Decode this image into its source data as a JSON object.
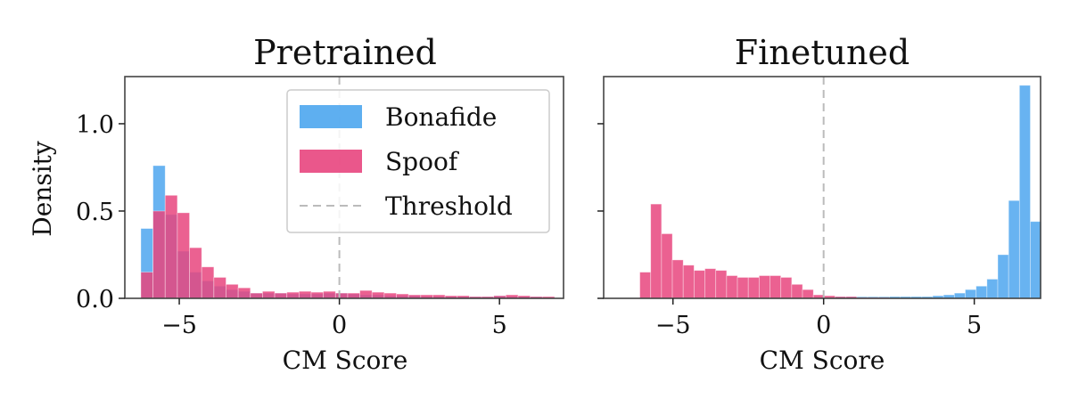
{
  "colors": {
    "bonafide": "#4DA6EE",
    "spoof": "#E8457E",
    "threshold": "#bbbbbb",
    "frame": "#444444"
  },
  "legend": {
    "bonafide": "Bonafide",
    "spoof": "Spoof",
    "threshold": "Threshold"
  },
  "chart_data": [
    {
      "type": "bar",
      "title": "Pretrained",
      "xlabel": "CM Score",
      "ylabel": "Density",
      "xlim": [
        -6.7,
        7.0
      ],
      "ylim": [
        0,
        1.27
      ],
      "xticks": [
        -5,
        0,
        5
      ],
      "xtick_labels": [
        "−5",
        "0",
        "5"
      ],
      "yticks": [
        0.0,
        0.5,
        1.0
      ],
      "ytick_labels": [
        "0.0",
        "0.5",
        "1.0"
      ],
      "threshold": 0.0,
      "legend_position": "upper-right",
      "bin_start": -6.2,
      "bin_width": 0.38,
      "series": [
        {
          "name": "Bonafide",
          "values": [
            0.4,
            0.76,
            0.48,
            0.27,
            0.15,
            0.1,
            0.07,
            0.05,
            0.04,
            0.03,
            0.03,
            0.03,
            0.025,
            0.025,
            0.025,
            0.03,
            0.03,
            0.025,
            0.02,
            0.02,
            0.015,
            0.015,
            0.015,
            0.01,
            0.01,
            0.01,
            0.01,
            0.01,
            0.01,
            0.015,
            0.01,
            0.01,
            0.01,
            0.005
          ]
        },
        {
          "name": "Spoof",
          "values": [
            0.15,
            0.5,
            0.59,
            0.49,
            0.29,
            0.18,
            0.12,
            0.08,
            0.06,
            0.03,
            0.04,
            0.03,
            0.035,
            0.04,
            0.035,
            0.04,
            0.03,
            0.03,
            0.045,
            0.035,
            0.03,
            0.025,
            0.02,
            0.02,
            0.02,
            0.015,
            0.015,
            0.01,
            0.01,
            0.015,
            0.02,
            0.015,
            0.01,
            0.01
          ]
        }
      ]
    },
    {
      "type": "bar",
      "title": "Finetuned",
      "xlabel": "CM Score",
      "ylabel": "",
      "xlim": [
        -7.3,
        7.2
      ],
      "ylim": [
        0,
        1.27
      ],
      "xticks": [
        -5,
        0,
        5
      ],
      "xtick_labels": [
        "−5",
        "0",
        "5"
      ],
      "yticks": [
        0.0,
        0.5,
        1.0
      ],
      "ytick_labels": [
        "",
        "",
        ""
      ],
      "threshold": 0.0,
      "bin_start": -6.1,
      "bin_width": 0.36,
      "series": [
        {
          "name": "Bonafide",
          "values": [
            0,
            0,
            0,
            0,
            0,
            0,
            0,
            0,
            0,
            0,
            0,
            0,
            0,
            0,
            0,
            0,
            0,
            0,
            0.01,
            0.01,
            0.01,
            0.01,
            0.01,
            0.01,
            0.01,
            0.01,
            0.01,
            0.015,
            0.02,
            0.03,
            0.05,
            0.07,
            0.11,
            0.25,
            0.56,
            1.22,
            0.44
          ]
        },
        {
          "name": "Spoof",
          "values": [
            0.15,
            0.54,
            0.37,
            0.22,
            0.19,
            0.16,
            0.17,
            0.16,
            0.13,
            0.12,
            0.12,
            0.13,
            0.13,
            0.12,
            0.08,
            0.05,
            0.02,
            0.015,
            0.01,
            0.01,
            0.005,
            0.005,
            0.005,
            0,
            0,
            0,
            0,
            0,
            0,
            0,
            0,
            0,
            0,
            0,
            0,
            0,
            0
          ]
        }
      ]
    }
  ]
}
